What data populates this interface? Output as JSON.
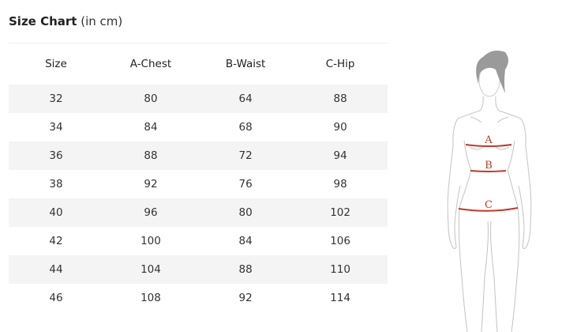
{
  "title": {
    "main": "Size Chart",
    "unit": "(in cm)"
  },
  "table": {
    "headers": [
      "Size",
      "A-Chest",
      "B-Waist",
      "C-Hip"
    ],
    "rows": [
      [
        "32",
        "80",
        "64",
        "88"
      ],
      [
        "34",
        "84",
        "68",
        "90"
      ],
      [
        "36",
        "88",
        "72",
        "94"
      ],
      [
        "38",
        "92",
        "76",
        "98"
      ],
      [
        "40",
        "96",
        "80",
        "102"
      ],
      [
        "42",
        "100",
        "84",
        "106"
      ],
      [
        "44",
        "104",
        "88",
        "110"
      ],
      [
        "46",
        "108",
        "92",
        "114"
      ]
    ]
  },
  "figure": {
    "labels": {
      "a": "A",
      "b": "B",
      "c": "C"
    },
    "measure_color": "#c0392b",
    "hair_color": "#9a9a9a"
  }
}
